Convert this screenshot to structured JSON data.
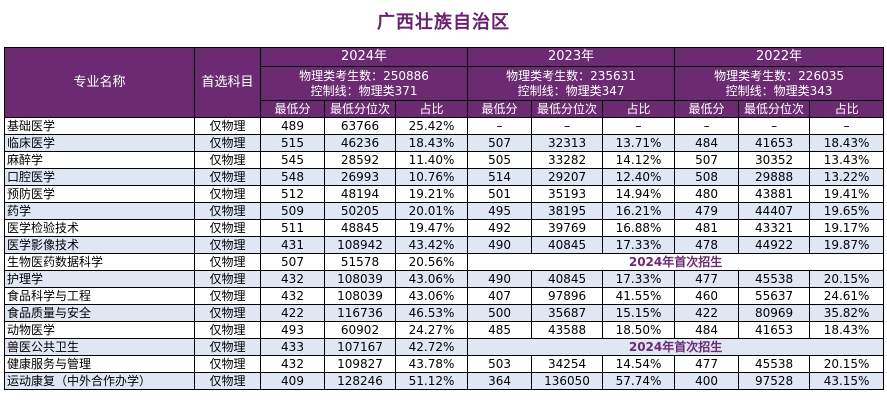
{
  "title": "广西壮族自治区",
  "headers": {
    "major": "专业名称",
    "subject": "首选科目",
    "years": [
      {
        "year": "2024年",
        "stats_line1": "物理类考生数：250886",
        "stats_line2": "控制线：物理类371"
      },
      {
        "year": "2023年",
        "stats_line1": "物理类考生数：235631",
        "stats_line2": "控制线：物理类347"
      },
      {
        "year": "2022年",
        "stats_line1": "物理类考生数：226035",
        "stats_line2": "控制线：物理类343"
      }
    ],
    "sub": [
      "最低分",
      "最低分位次",
      "占比"
    ]
  },
  "first_enroll_note": "2024年首次招生",
  "rows": [
    {
      "name": "基础医学",
      "subject": "仅物理",
      "y2024": [
        "489",
        "63766",
        "25.42%"
      ],
      "y2023": [
        "–",
        "–",
        "–"
      ],
      "y2022": [
        "–",
        "–",
        "–"
      ]
    },
    {
      "name": "临床医学",
      "subject": "仅物理",
      "y2024": [
        "515",
        "46236",
        "18.43%"
      ],
      "y2023": [
        "507",
        "32313",
        "13.71%"
      ],
      "y2022": [
        "484",
        "41653",
        "18.43%"
      ]
    },
    {
      "name": "麻醉学",
      "subject": "仅物理",
      "y2024": [
        "545",
        "28592",
        "11.40%"
      ],
      "y2023": [
        "505",
        "33282",
        "14.12%"
      ],
      "y2022": [
        "507",
        "30352",
        "13.43%"
      ]
    },
    {
      "name": "口腔医学",
      "subject": "仅物理",
      "y2024": [
        "548",
        "26993",
        "10.76%"
      ],
      "y2023": [
        "514",
        "29207",
        "12.40%"
      ],
      "y2022": [
        "508",
        "29888",
        "13.22%"
      ]
    },
    {
      "name": "预防医学",
      "subject": "仅物理",
      "y2024": [
        "512",
        "48194",
        "19.21%"
      ],
      "y2023": [
        "501",
        "35193",
        "14.94%"
      ],
      "y2022": [
        "480",
        "43881",
        "19.41%"
      ]
    },
    {
      "name": "药学",
      "subject": "仅物理",
      "y2024": [
        "509",
        "50205",
        "20.01%"
      ],
      "y2023": [
        "495",
        "38195",
        "16.21%"
      ],
      "y2022": [
        "479",
        "44407",
        "19.65%"
      ]
    },
    {
      "name": "医学检验技术",
      "subject": "仅物理",
      "y2024": [
        "511",
        "48845",
        "19.47%"
      ],
      "y2023": [
        "492",
        "39769",
        "16.88%"
      ],
      "y2022": [
        "481",
        "43321",
        "19.17%"
      ]
    },
    {
      "name": "医学影像技术",
      "subject": "仅物理",
      "y2024": [
        "431",
        "108942",
        "43.42%"
      ],
      "y2023": [
        "490",
        "40845",
        "17.33%"
      ],
      "y2022": [
        "478",
        "44922",
        "19.87%"
      ]
    },
    {
      "name": "生物医药数据科学",
      "subject": "仅物理",
      "y2024": [
        "507",
        "51578",
        "20.56%"
      ],
      "first": true
    },
    {
      "name": "护理学",
      "subject": "仅物理",
      "y2024": [
        "432",
        "108039",
        "43.06%"
      ],
      "y2023": [
        "490",
        "40845",
        "17.33%"
      ],
      "y2022": [
        "477",
        "45538",
        "20.15%"
      ]
    },
    {
      "name": "食品科学与工程",
      "subject": "仅物理",
      "y2024": [
        "432",
        "108039",
        "43.06%"
      ],
      "y2023": [
        "407",
        "97896",
        "41.55%"
      ],
      "y2022": [
        "460",
        "55637",
        "24.61%"
      ]
    },
    {
      "name": "食品质量与安全",
      "subject": "仅物理",
      "y2024": [
        "422",
        "116736",
        "46.53%"
      ],
      "y2023": [
        "500",
        "35687",
        "15.15%"
      ],
      "y2022": [
        "422",
        "80969",
        "35.82%"
      ]
    },
    {
      "name": "动物医学",
      "subject": "仅物理",
      "y2024": [
        "493",
        "60902",
        "24.27%"
      ],
      "y2023": [
        "485",
        "43588",
        "18.50%"
      ],
      "y2022": [
        "484",
        "41653",
        "18.43%"
      ]
    },
    {
      "name": "兽医公共卫生",
      "subject": "仅物理",
      "y2024": [
        "433",
        "107167",
        "42.72%"
      ],
      "first": true
    },
    {
      "name": "健康服务与管理",
      "subject": "仅物理",
      "y2024": [
        "432",
        "109827",
        "43.78%"
      ],
      "y2023": [
        "503",
        "34254",
        "14.54%"
      ],
      "y2022": [
        "477",
        "45538",
        "20.15%"
      ]
    },
    {
      "name": "运动康复（中外合作办学）",
      "subject": "仅物理",
      "y2024": [
        "409",
        "128246",
        "51.12%"
      ],
      "y2023": [
        "364",
        "136050",
        "57.74%"
      ],
      "y2022": [
        "400",
        "97528",
        "43.15%"
      ]
    }
  ]
}
